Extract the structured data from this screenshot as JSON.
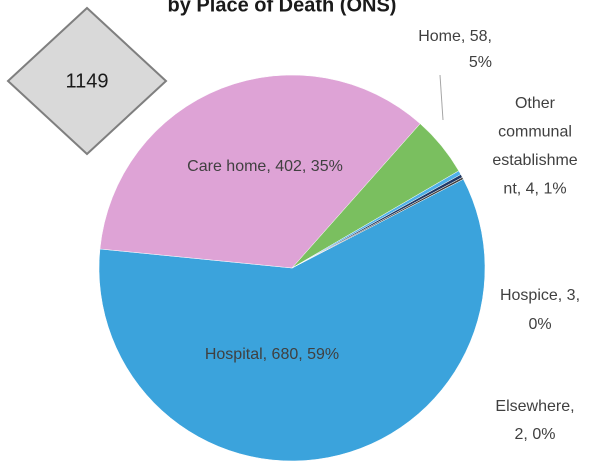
{
  "chart_data": {
    "type": "pie",
    "title": "by Place of Death (ONS)",
    "annotation": "1149",
    "categories": [
      "Hospital",
      "Care home",
      "Home",
      "Other communal establishment",
      "Hospice",
      "Elsewhere"
    ],
    "values": [
      680,
      402,
      58,
      4,
      3,
      2
    ],
    "colors": [
      "#3ba3dc",
      "#dea3d6",
      "#7abf5f",
      "#4fb0e8",
      "#1f3864",
      "#404040"
    ],
    "value_labels": [
      [
        "Hospital, 680, 59%"
      ],
      [
        "Care home, 402, 35%"
      ],
      [
        "Home, 58,",
        "5%"
      ],
      [
        "Other",
        "communal",
        "establishme",
        "nt, 4, 1%"
      ],
      [
        "Hospice, 3,",
        "0%"
      ],
      [
        "Elsewhere,",
        "2, 0%"
      ]
    ]
  }
}
